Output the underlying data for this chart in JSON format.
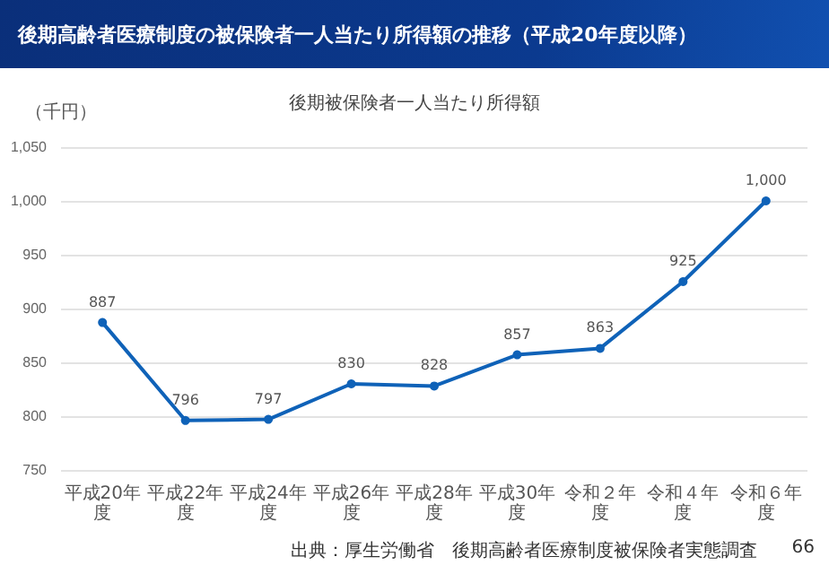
{
  "chart_data": {
    "type": "line",
    "title": "後期高齢者医療制度の被保険者一人当たり所得額の推移（平成20年度以降）",
    "subtitle": "後期被保険者一人当たり所得額",
    "ylabel": "（千円）",
    "categories": [
      "平成20年度",
      "平成22年度",
      "平成24年度",
      "平成26年度",
      "平成28年度",
      "平成30年度",
      "令和２年度",
      "令和４年度",
      "令和６年度"
    ],
    "series": [
      {
        "color": "#0f62b8",
        "values": [
          887,
          796,
          797,
          830,
          828,
          857,
          863,
          925,
          1000
        ],
        "value_labels": [
          "887",
          "796",
          "797",
          "830",
          "828",
          "857",
          "863",
          "925",
          "1,000"
        ]
      }
    ],
    "ylim": [
      750,
      1050
    ],
    "yticks": [
      750,
      800,
      850,
      900,
      950,
      {
        "value": 1000,
        "label": "1,000"
      },
      {
        "value": 1050,
        "label": "1,050"
      }
    ],
    "grid": "y",
    "marker": "circle",
    "line_style": "solid",
    "annotations": [
      "出典：厚生労働省　後期高齢者医療制度被保険者実態調査",
      "66"
    ]
  }
}
